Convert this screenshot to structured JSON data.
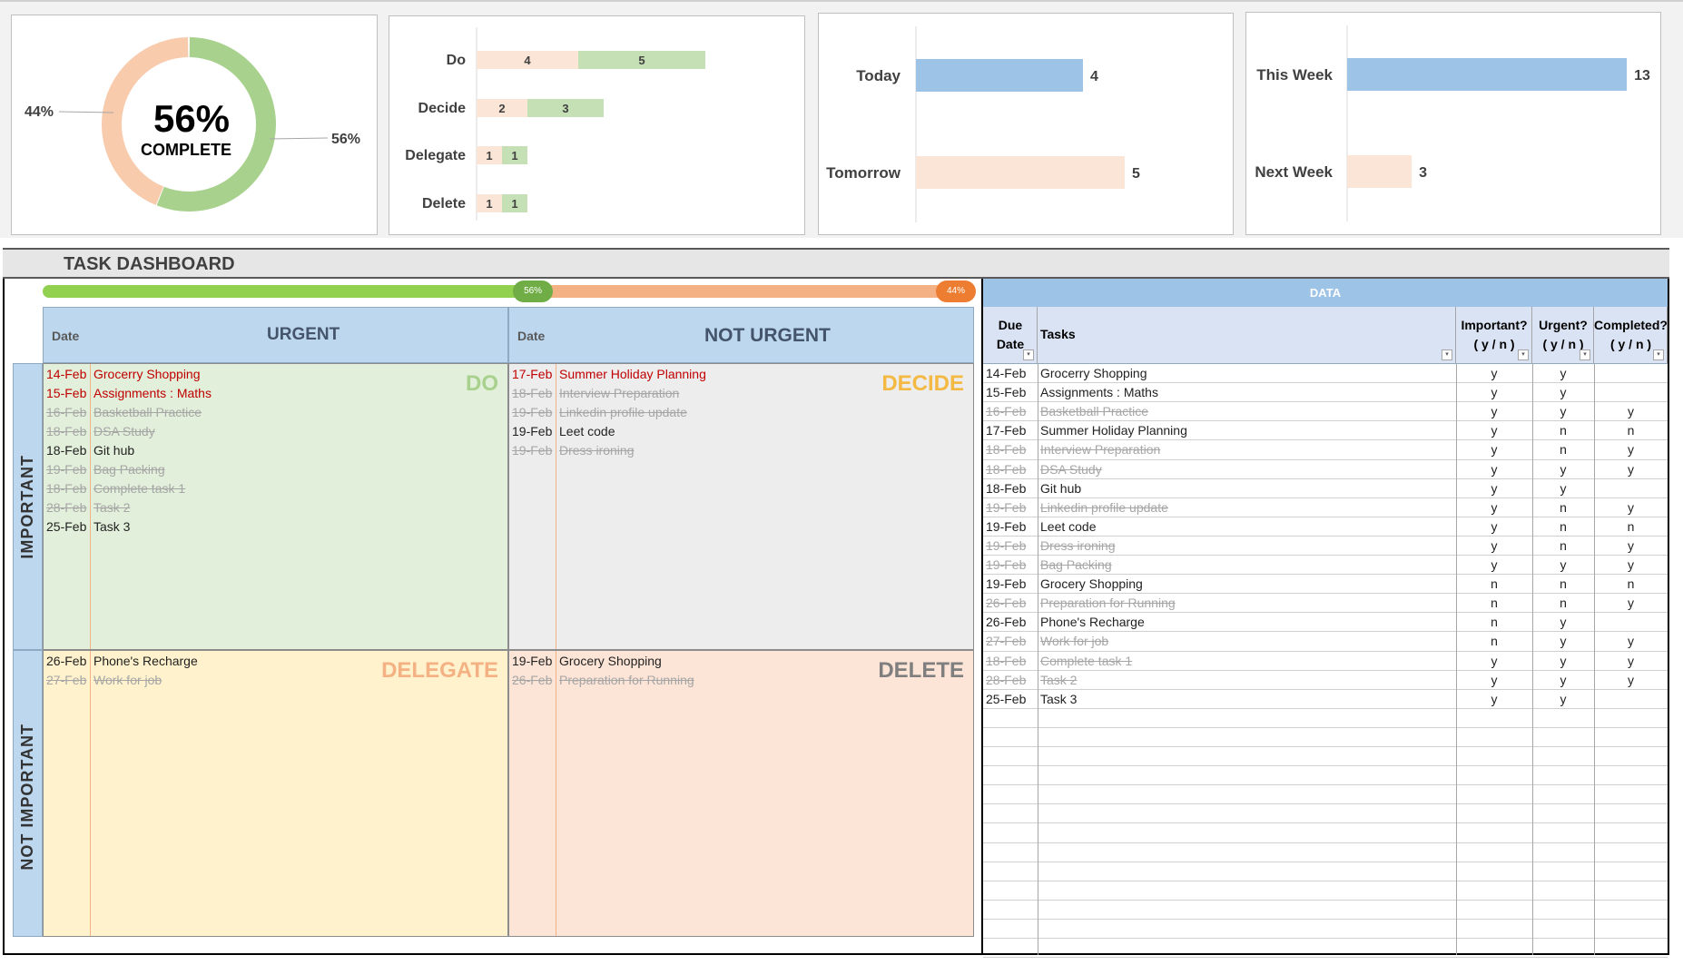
{
  "donut": {
    "center_value": "56%",
    "center_label": "COMPLETE",
    "label_left": "44%",
    "label_right": "56%",
    "complete_fraction": 0.56,
    "colors": {
      "complete": "#a9d18e",
      "remaining": "#f8cbad"
    }
  },
  "chart_data": [
    {
      "type": "bar",
      "orientation": "horizontal",
      "stacked": true,
      "categories": [
        "Do",
        "Decide",
        "Delegate",
        "Delete"
      ],
      "series": [
        {
          "values": [
            4,
            2,
            1,
            1
          ],
          "color": "#fbe5d6"
        },
        {
          "values": [
            5,
            3,
            1,
            1
          ],
          "color": "#c5e0b4"
        }
      ]
    },
    {
      "type": "bar",
      "orientation": "horizontal",
      "categories": [
        "Today",
        "Tomorrow"
      ],
      "values": [
        4,
        5
      ],
      "colors": [
        "#9dc3e6",
        "#fbe5d6"
      ]
    },
    {
      "type": "bar",
      "orientation": "horizontal",
      "categories": [
        "This Week",
        "Next Week"
      ],
      "values": [
        13,
        3
      ],
      "colors": [
        "#9dc3e6",
        "#fbe5d6"
      ]
    }
  ],
  "dashboard": {
    "title": "TASK DASHBOARD",
    "progress": {
      "complete_label": "56%",
      "remaining_label": "44%",
      "complete_fraction": 0.56
    }
  },
  "matrix": {
    "urgent_header": "URGENT",
    "not_urgent_header": "NOT URGENT",
    "date_header": "Date",
    "important_label": "IMPORTANT",
    "not_important_label": "NOT IMPORTANT",
    "quadrants": {
      "do": {
        "title": "DO",
        "items": [
          {
            "date": "14-Feb",
            "task": "Grocerry Shopping",
            "state": "overdue"
          },
          {
            "date": "15-Feb",
            "task": "Assignments : Maths",
            "state": "overdue"
          },
          {
            "date": "16-Feb",
            "task": "Basketball Practice",
            "state": "done"
          },
          {
            "date": "18-Feb",
            "task": "DSA Study",
            "state": "done"
          },
          {
            "date": "18-Feb",
            "task": "Git hub",
            "state": "open"
          },
          {
            "date": "19-Feb",
            "task": "Bag Packing",
            "state": "done"
          },
          {
            "date": "18-Feb",
            "task": "Complete task 1",
            "state": "done"
          },
          {
            "date": "28-Feb",
            "task": "Task 2",
            "state": "done"
          },
          {
            "date": "25-Feb",
            "task": "Task 3",
            "state": "open"
          }
        ]
      },
      "decide": {
        "title": "DECIDE",
        "items": [
          {
            "date": "17-Feb",
            "task": "Summer Holiday Planning",
            "state": "overdue"
          },
          {
            "date": "18-Feb",
            "task": "Interview Preparation",
            "state": "done"
          },
          {
            "date": "19-Feb",
            "task": "Linkedin profile update",
            "state": "done"
          },
          {
            "date": "19-Feb",
            "task": "Leet code",
            "state": "open"
          },
          {
            "date": "19-Feb",
            "task": "Dress ironing",
            "state": "done"
          }
        ]
      },
      "delegate": {
        "title": "DELEGATE",
        "items": [
          {
            "date": "26-Feb",
            "task": "Phone's Recharge",
            "state": "open"
          },
          {
            "date": "27-Feb",
            "task": "Work for job",
            "state": "done"
          }
        ]
      },
      "delete": {
        "title": "DELETE",
        "items": [
          {
            "date": "19-Feb",
            "task": "Grocery Shopping",
            "state": "open"
          },
          {
            "date": "26-Feb",
            "task": "Preparation for Running",
            "state": "done"
          }
        ]
      }
    }
  },
  "data_table": {
    "title": "DATA",
    "headers": {
      "due_date_1": "Due",
      "due_date_2": "Date",
      "tasks": "Tasks",
      "important_1": "Important?",
      "important_2": "( y / n )",
      "urgent_1": "Urgent?",
      "urgent_2": "( y / n )",
      "completed_1": "Completed?",
      "completed_2": "( y / n )"
    },
    "rows": [
      {
        "date": "14-Feb",
        "task": "Grocerry Shopping",
        "important": "y",
        "urgent": "y",
        "completed": "",
        "done": false
      },
      {
        "date": "15-Feb",
        "task": "Assignments : Maths",
        "important": "y",
        "urgent": "y",
        "completed": "",
        "done": false
      },
      {
        "date": "16-Feb",
        "task": "Basketball Practice",
        "important": "y",
        "urgent": "y",
        "completed": "y",
        "done": true
      },
      {
        "date": "17-Feb",
        "task": "Summer Holiday Planning",
        "important": "y",
        "urgent": "n",
        "completed": "n",
        "done": false
      },
      {
        "date": "18-Feb",
        "task": "Interview Preparation",
        "important": "y",
        "urgent": "n",
        "completed": "y",
        "done": true
      },
      {
        "date": "18-Feb",
        "task": "DSA Study",
        "important": "y",
        "urgent": "y",
        "completed": "y",
        "done": true
      },
      {
        "date": "18-Feb",
        "task": "Git hub",
        "important": "y",
        "urgent": "y",
        "completed": "",
        "done": false
      },
      {
        "date": "19-Feb",
        "task": "Linkedin profile update",
        "important": "y",
        "urgent": "n",
        "completed": "y",
        "done": true
      },
      {
        "date": "19-Feb",
        "task": "Leet code",
        "important": "y",
        "urgent": "n",
        "completed": "n",
        "done": false
      },
      {
        "date": "19-Feb",
        "task": "Dress ironing",
        "important": "y",
        "urgent": "n",
        "completed": "y",
        "done": true
      },
      {
        "date": "19-Feb",
        "task": "Bag Packing",
        "important": "y",
        "urgent": "y",
        "completed": "y",
        "done": true
      },
      {
        "date": "19-Feb",
        "task": "Grocery Shopping",
        "important": "n",
        "urgent": "n",
        "completed": "n",
        "done": false
      },
      {
        "date": "26-Feb",
        "task": "Preparation for Running",
        "important": "n",
        "urgent": "n",
        "completed": "y",
        "done": true
      },
      {
        "date": "26-Feb",
        "task": "Phone's Recharge",
        "important": "n",
        "urgent": "y",
        "completed": "",
        "done": false
      },
      {
        "date": "27-Feb",
        "task": "Work for job",
        "important": "n",
        "urgent": "y",
        "completed": "y",
        "done": true
      },
      {
        "date": "18-Feb",
        "task": "Complete task 1",
        "important": "y",
        "urgent": "y",
        "completed": "y",
        "done": true
      },
      {
        "date": "28-Feb",
        "task": "Task 2",
        "important": "y",
        "urgent": "y",
        "completed": "y",
        "done": true
      },
      {
        "date": "25-Feb",
        "task": "Task 3",
        "important": "y",
        "urgent": "y",
        "completed": "",
        "done": false
      }
    ],
    "empty_rows": 13
  },
  "colors": {
    "header_blue": "#bdd7ee",
    "table_header_blue": "#9dc3e6",
    "do_bg": "#e2efda",
    "decide_bg": "#ededed",
    "delegate_bg": "#fff2cc",
    "delete_bg": "#fce4d6",
    "do_title": "#a9d18e",
    "decide_title": "#f4b942",
    "delegate_title": "#f4b183",
    "delete_title": "#7f7f7f",
    "progress_green": "#92d050",
    "progress_orange": "#f4b183"
  }
}
